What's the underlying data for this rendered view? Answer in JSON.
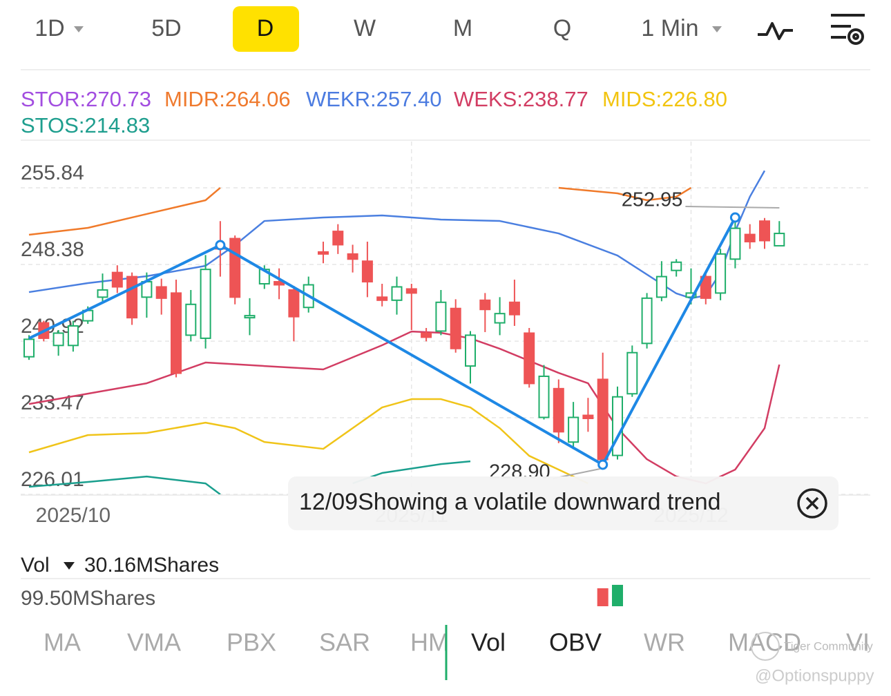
{
  "tabs": {
    "items": [
      "1D",
      "5D",
      "D",
      "W",
      "M",
      "Q",
      "1 Min"
    ],
    "active": 2
  },
  "indicators": [
    {
      "label": "STOR:270.73",
      "color": "#a24de0"
    },
    {
      "label": "MIDR:264.06",
      "color": "#ef7a2e"
    },
    {
      "label": "WEKR:257.40",
      "color": "#4b7be0"
    },
    {
      "label": "WEKS:238.77",
      "color": "#d23d63"
    },
    {
      "label": "MIDS:226.80",
      "color": "#f2c40f"
    },
    {
      "label": "STOS:214.83",
      "color": "#1e9e8e"
    }
  ],
  "chart_data": {
    "type": "candlestick",
    "ylim": [
      226.01,
      260.34
    ],
    "yticks": [
      255.84,
      248.38,
      240.92,
      233.47,
      226.01
    ],
    "grid": true,
    "up_color": "#1fae6a",
    "down_color": "#ee5455",
    "categories": [
      null,
      null,
      null,
      "2025/10",
      null,
      null,
      null,
      null,
      null,
      null,
      null,
      null,
      null,
      null,
      null,
      null,
      null,
      null,
      null,
      null,
      null,
      null,
      null,
      null,
      null,
      null,
      "2025/11",
      null,
      null,
      null,
      null,
      null,
      null,
      null,
      null,
      null,
      null,
      null,
      null,
      null,
      null,
      null,
      null,
      null,
      null,
      "2025/12",
      null,
      null,
      null,
      null,
      null,
      null
    ],
    "open": [
      239.4,
      242.7,
      240.5,
      240.5,
      242.9,
      245.2,
      247.6,
      247.2,
      245.2,
      246.2,
      245.6,
      241.5,
      241.2,
      250.1,
      250.9,
      243.2,
      246.5,
      246.7,
      245.9,
      244.2,
      249.6,
      251.6,
      249.4,
      248.7,
      245.2,
      244.9,
      246.0,
      241.7,
      241.9,
      244.1,
      238.5,
      244.9,
      242.7,
      244.7,
      241.7,
      233.5,
      236.3,
      231.1,
      233.7,
      237.2,
      229.8,
      235.8,
      240.7,
      245.2,
      247.8,
      245.2,
      247.2,
      245.6,
      248.9,
      251.3,
      252.6,
      250.2
    ],
    "high": [
      241.5,
      242.9,
      242.0,
      242.9,
      244.3,
      247.5,
      248.3,
      247.6,
      247.6,
      247.0,
      246.9,
      245.9,
      249.3,
      252.6,
      251.2,
      245.1,
      248.3,
      248.0,
      246.3,
      247.2,
      250.6,
      252.3,
      250.3,
      250.6,
      246.5,
      247.2,
      246.5,
      242.2,
      245.9,
      245.0,
      241.9,
      245.6,
      245.2,
      246.9,
      242.2,
      238.6,
      237.2,
      235.0,
      235.4,
      239.8,
      236.5,
      240.5,
      245.6,
      248.7,
      248.9,
      248.0,
      247.6,
      249.9,
      252.95,
      252.3,
      252.9,
      252.6
    ],
    "low": [
      239.1,
      240.9,
      239.5,
      239.9,
      242.6,
      244.8,
      245.6,
      242.5,
      243.2,
      243.5,
      237.4,
      240.9,
      240.2,
      247.2,
      244.5,
      241.5,
      246.0,
      245.0,
      240.9,
      243.7,
      248.5,
      249.4,
      247.6,
      245.2,
      244.3,
      243.5,
      242.0,
      240.9,
      241.5,
      239.8,
      236.8,
      241.8,
      241.5,
      242.4,
      236.4,
      233.3,
      231.0,
      230.4,
      232.1,
      228.9,
      229.4,
      235.5,
      240.2,
      244.8,
      247.2,
      244.5,
      244.5,
      244.9,
      248.0,
      249.9,
      249.9,
      250.2
    ],
    "close": [
      241.1,
      241.2,
      241.7,
      242.4,
      243.9,
      245.9,
      246.2,
      243.2,
      246.7,
      245.1,
      237.8,
      244.5,
      247.9,
      249.9,
      245.2,
      243.4,
      247.9,
      246.4,
      243.3,
      246.4,
      249.4,
      250.3,
      248.9,
      246.7,
      244.9,
      246.2,
      245.6,
      241.3,
      244.7,
      240.2,
      241.5,
      244.0,
      243.6,
      243.5,
      236.8,
      237.5,
      232.1,
      233.5,
      233.4,
      229.4,
      235.5,
      239.8,
      245.1,
      247.2,
      248.6,
      245.6,
      245.1,
      249.4,
      251.9,
      250.6,
      250.7,
      251.4
    ],
    "series": [
      {
        "color": "#f07a2a",
        "x": [
          0,
          4,
          8,
          12,
          13,
          24,
          36,
          40,
          42,
          44,
          45
        ],
        "values": [
          251.27,
          251.94,
          253.29,
          254.63,
          255.84,
          null,
          255.84,
          255.3,
          254.63,
          254.97,
          255.84
        ]
      },
      {
        "color": "#4a7fe0",
        "x": [
          0,
          4,
          8,
          12,
          14,
          16,
          20,
          24,
          28,
          32,
          36,
          40,
          44,
          45,
          46,
          47,
          48,
          49,
          50
        ],
        "values": [
          245.69,
          246.57,
          247.24,
          248.25,
          250.26,
          252.61,
          252.95,
          253.15,
          252.75,
          252.61,
          251.4,
          249.25,
          245.56,
          245.09,
          245.36,
          247.57,
          251.61,
          254.97,
          257.5
        ]
      },
      {
        "color": "#d23d63",
        "x": [
          0,
          4,
          8,
          12,
          16,
          20,
          24,
          26,
          28,
          30,
          32,
          36,
          38,
          40,
          42,
          44,
          46,
          48,
          50,
          51
        ],
        "values": [
          234.8,
          235.81,
          236.82,
          238.84,
          238.5,
          238.17,
          240.52,
          241.86,
          241.73,
          241.19,
          240.18,
          237.83,
          236.82,
          232.45,
          229.43,
          227.75,
          227.08,
          228.42,
          232.45,
          238.64
        ]
      },
      {
        "color": "#f0c419",
        "x": [
          0,
          4,
          8,
          12,
          14,
          16,
          20,
          24,
          26,
          28,
          30,
          32,
          34,
          36,
          38
        ],
        "values": [
          230.1,
          231.78,
          231.98,
          232.99,
          232.45,
          231.11,
          230.44,
          234.47,
          235.28,
          235.28,
          234.47,
          232.45,
          229.76,
          228.42,
          227.08
        ]
      },
      {
        "color": "#1a9f8e",
        "x": [
          0,
          4,
          8,
          12,
          13,
          18,
          22,
          24,
          28,
          30
        ],
        "values": [
          226.75,
          227.22,
          227.75,
          227.08,
          226.01,
          null,
          227.08,
          228.09,
          228.96,
          229.23
        ]
      }
    ],
    "trend_line": {
      "color": "#1e88e5",
      "x": [
        0,
        13,
        39,
        48
      ],
      "values": [
        241.19,
        250.26,
        228.9,
        252.95
      ]
    },
    "annotations": [
      {
        "text": "252.95",
        "x": 48,
        "value": 252.95
      },
      {
        "text": "228.90",
        "x": 39,
        "value": 228.9
      }
    ],
    "volume": {
      "x": [
        39,
        40
      ],
      "values": [
        64.7,
        77.1
      ],
      "ylim": [
        0,
        99.5
      ]
    }
  },
  "tooltip": "12/09Showing a volatile downward trend",
  "volume_panel": {
    "label": "Vol",
    "current": "30.16MShares",
    "max": "99.50MShares"
  },
  "bottom_tabs": {
    "items": [
      "MA",
      "VMA",
      "PBX",
      "SAR",
      "HM",
      "Vol",
      "OBV",
      "WR",
      "MACD",
      "VI"
    ],
    "active": [
      5,
      6
    ]
  },
  "watermarks": [
    "Tiger Community",
    "@Optionspuppy"
  ]
}
